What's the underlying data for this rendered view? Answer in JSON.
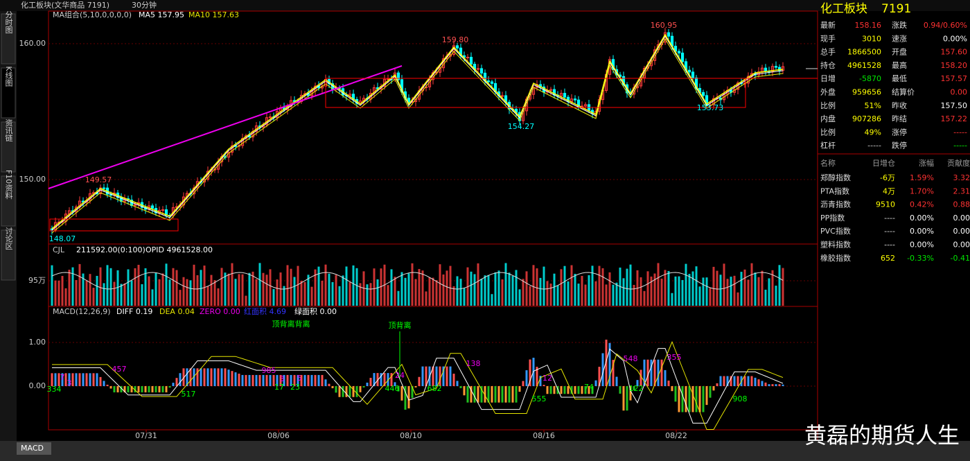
{
  "header": {
    "title": "化工板块(文华商品 7191)",
    "period": "30分钟"
  },
  "sidebar": {
    "tabs": [
      "分时图",
      "K线图",
      "资讯链",
      "F10资料",
      "讨论区"
    ]
  },
  "price_panel": {
    "indicator": "MA组合(5,10,0,0,0,0)",
    "ma5": "MA5 157.95",
    "ma10": "MA10 157.63",
    "axis_labels": [
      "160.00",
      "150.00"
    ],
    "annotations": {
      "low_start": "148.07",
      "peak1": "149.57",
      "peak2": "159.80",
      "low1": "154.27",
      "peak3": "160.95",
      "low2": "153.73"
    }
  },
  "volume_panel": {
    "indicator": "CJL",
    "value": "211592.00(0:100)",
    "opid": "OPID 4961528.00",
    "axis_label": "95万"
  },
  "macd_panel": {
    "indicator": "MACD(12,26,9)",
    "diff": "DIFF 0.19",
    "dea": "DEA 0.04",
    "zero": "ZERO 0.00",
    "red_area": "红面积 4.69",
    "green_area": "绿面积 0.00",
    "axis_labels": [
      "1.00",
      "0.00"
    ],
    "notes": [
      "顶背离背离",
      "顶背离"
    ],
    "bar_labels": [
      "7",
      "334",
      "3",
      "457",
      "517",
      "985",
      "3",
      "5",
      "17",
      "23",
      "24",
      "446",
      "682",
      "138",
      "555",
      "12",
      "74",
      "548",
      "122",
      "355",
      "908"
    ]
  },
  "x_axis": {
    "dates": [
      "07/31",
      "08/06",
      "08/10",
      "08/16",
      "08/22"
    ]
  },
  "quote": {
    "name": "化工板块",
    "code": "7191",
    "rows": [
      [
        "最新",
        "158.16",
        "涨跌",
        "0.94/0.60%"
      ],
      [
        "现手",
        "3010",
        "速涨",
        "0.00%"
      ],
      [
        "总手",
        "1866500",
        "开盘",
        "157.60"
      ],
      [
        "持仓",
        "4961528",
        "最高",
        "158.20"
      ],
      [
        "日增",
        "-5870",
        "最低",
        "157.57"
      ],
      [
        "外盘",
        "959656",
        "结算价",
        "0.00"
      ],
      [
        "比例",
        "51%",
        "昨收",
        "157.50"
      ],
      [
        "内盘",
        "907286",
        "昨结",
        "157.22"
      ],
      [
        "比例",
        "49%",
        "涨停",
        "-----"
      ],
      [
        "杠杆",
        "-----",
        "跌停",
        "-----"
      ]
    ]
  },
  "index_table": {
    "header": [
      "名称",
      "日增仓",
      "涨幅",
      "贡献度"
    ],
    "rows": [
      [
        "郑醇指数",
        "-6万",
        "1.59%",
        "3.32"
      ],
      [
        "PTA指数",
        "4万",
        "1.70%",
        "2.31"
      ],
      [
        "沥青指数",
        "9510",
        "0.42%",
        "0.88"
      ],
      [
        "PP指数",
        "----",
        "0.00%",
        "0.00"
      ],
      [
        "PVC指数",
        "----",
        "0.00%",
        "0.00"
      ],
      [
        "塑料指数",
        "----",
        "0.00%",
        "0.00"
      ],
      [
        "橡胶指数",
        "652",
        "-0.33%",
        "-0.41"
      ]
    ]
  },
  "footer": {
    "tab": "MACD",
    "watermark": "黄磊的期货人生"
  }
}
